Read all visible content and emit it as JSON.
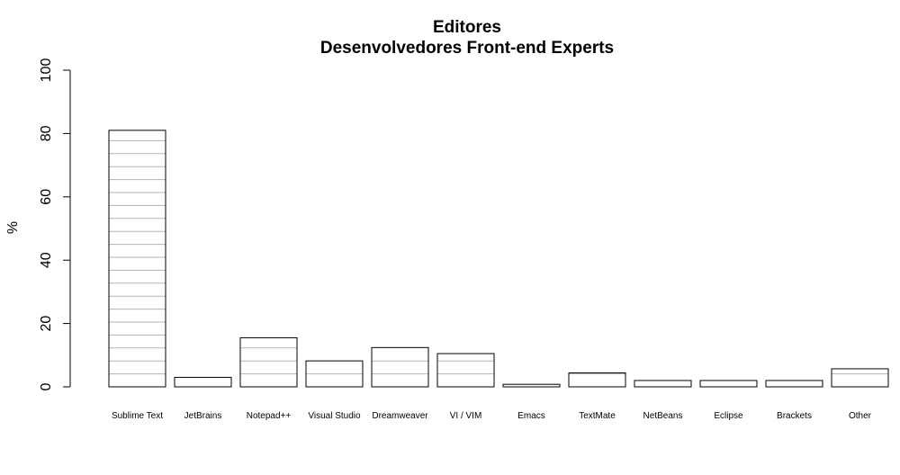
{
  "chart_data": {
    "type": "bar",
    "title": "Editores",
    "subtitle": "Desenvolvedores Front-end Experts",
    "xlabel": "",
    "ylabel": "%",
    "ylim": [
      0,
      100
    ],
    "yticks": [
      "0",
      "20",
      "40",
      "60",
      "80",
      "100"
    ],
    "grid": false,
    "bar_pattern": "horizontal hatching",
    "categories": [
      "Sublime Text",
      "JetBrains",
      "Notepad++",
      "Visual Studio",
      "Dreamweaver",
      "VI / VIM",
      "Emacs",
      "TextMate",
      "NetBeans",
      "Eclipse",
      "Brackets",
      "Other"
    ],
    "values": [
      81,
      3,
      15.5,
      8.2,
      12.4,
      10.5,
      0.8,
      4.4,
      2,
      2,
      2,
      5.7
    ],
    "colors": {
      "bar_fill": "#ffffff",
      "bar_stroke": "#000000",
      "hatch": "#b3b3b3",
      "axis": "#000000"
    }
  }
}
